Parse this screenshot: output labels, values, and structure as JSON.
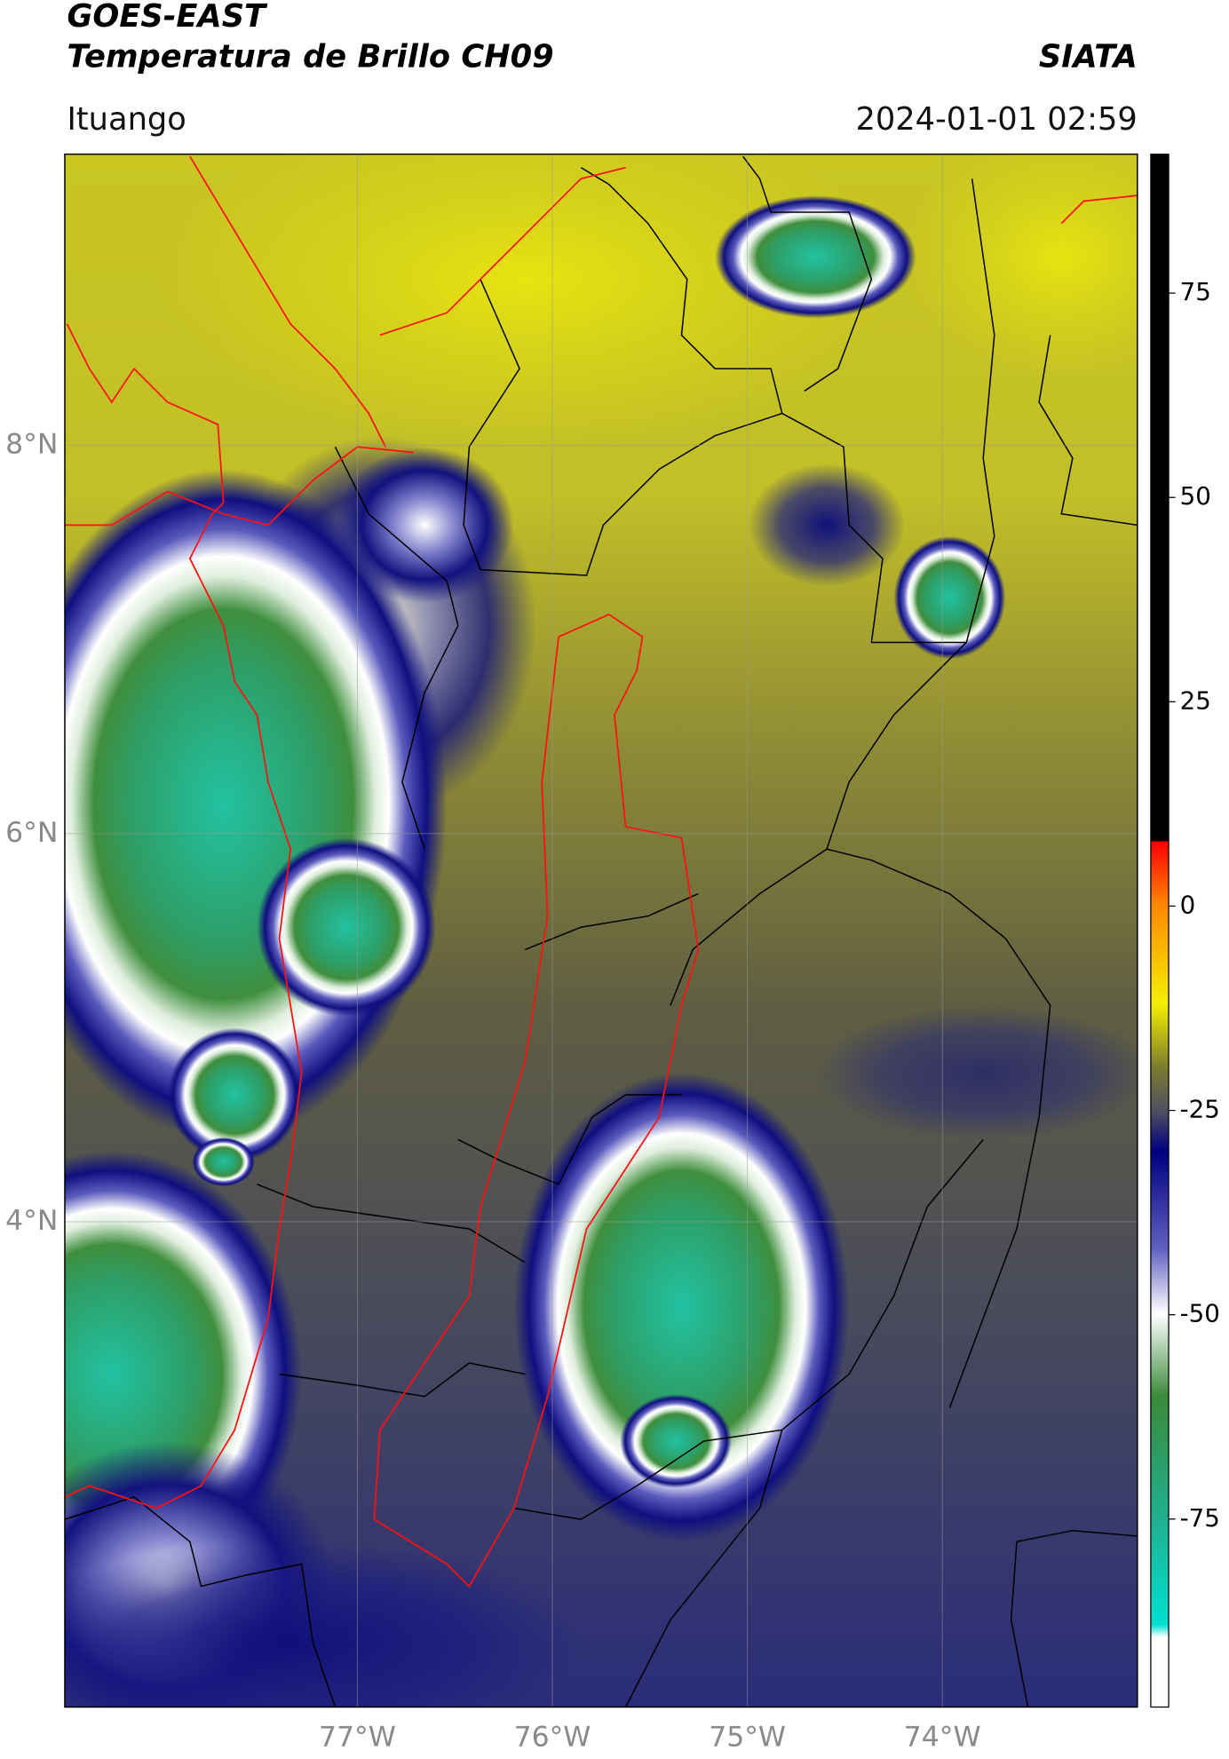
{
  "header": {
    "title": "GOES-EAST",
    "subtitle": "Temperatura de Brillo CH09",
    "brand": "SIATA",
    "location": "Ituango",
    "datetime": "2024-01-01 02:59"
  },
  "chart_data": {
    "type": "map",
    "xlim": [
      -78.5,
      -73.0
    ],
    "ylim": [
      1.5,
      9.5
    ],
    "xticks": [
      {
        "value": -77,
        "label": "77°W"
      },
      {
        "value": -76,
        "label": "76°W"
      },
      {
        "value": -75,
        "label": "75°W"
      },
      {
        "value": -74,
        "label": "74°W"
      }
    ],
    "yticks": [
      {
        "value": 8,
        "label": "8°N"
      },
      {
        "value": 6,
        "label": "6°N"
      },
      {
        "value": 4,
        "label": "4°N"
      }
    ],
    "grid": true,
    "colorbar": {
      "lim": [
        -98,
        92
      ],
      "ticks": [
        -75,
        -50,
        -25,
        0,
        25,
        50,
        75
      ]
    }
  }
}
